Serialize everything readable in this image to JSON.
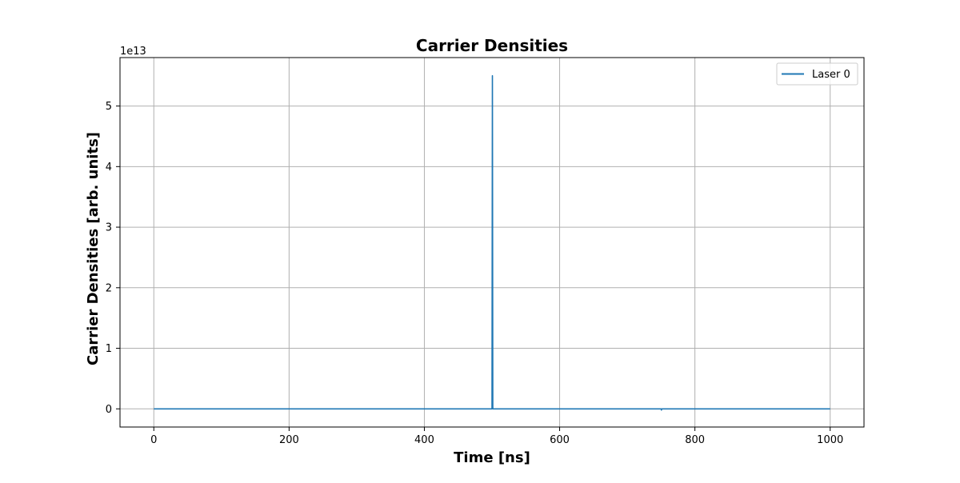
{
  "chart_data": {
    "type": "line",
    "title": "Carrier Densities",
    "xlabel": "Time [ns]",
    "ylabel": "Carrier Densities [arb. units]",
    "y_offset_label": "1e13",
    "xlim": [
      -50,
      1050
    ],
    "ylim": [
      -0.3,
      5.8
    ],
    "x_ticks": [
      0,
      200,
      400,
      600,
      800,
      1000
    ],
    "y_ticks": [
      0,
      1,
      2,
      3,
      4,
      5
    ],
    "x_tick_labels": [
      "0",
      "200",
      "400",
      "600",
      "800",
      "1000"
    ],
    "y_tick_labels": [
      "0",
      "1",
      "2",
      "3",
      "4",
      "5"
    ],
    "grid": true,
    "legend_position": "top-right",
    "series": [
      {
        "name": "Laser 0",
        "color": "#1f77b4",
        "x": [
          0,
          500,
          500.6,
          501.2,
          750,
          750.5,
          751,
          1000
        ],
        "y": [
          0,
          0,
          5.5,
          0,
          0,
          -0.02,
          0,
          0
        ]
      }
    ]
  }
}
